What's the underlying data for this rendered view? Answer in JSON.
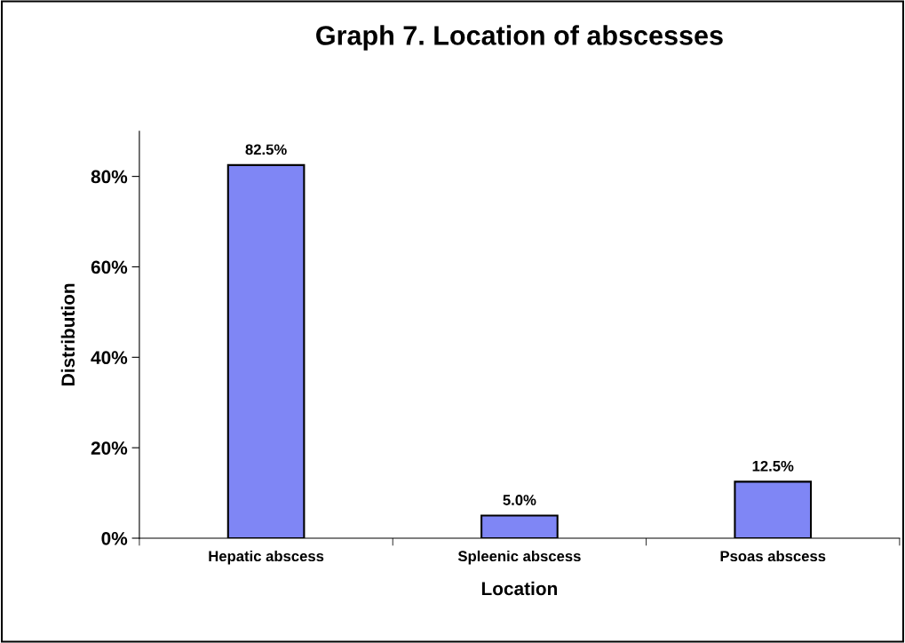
{
  "chart_data": {
    "type": "bar",
    "title": "Graph 7. Location of abscesses",
    "xlabel": "Location",
    "ylabel": "Distribution",
    "categories": [
      "Hepatic abscess",
      "Spleenic abscess",
      "Psoas abscess"
    ],
    "values": [
      82.5,
      5.0,
      12.5
    ],
    "value_labels": [
      "82.5%",
      "5.0%",
      "12.5%"
    ],
    "color": "#7f86f5",
    "ylim": [
      0,
      90
    ],
    "yticks": [
      {
        "value": 0,
        "label": "0%"
      },
      {
        "value": 20,
        "label": "20%"
      },
      {
        "value": 40,
        "label": "40%"
      },
      {
        "value": 60,
        "label": "60%"
      },
      {
        "value": 80,
        "label": "80%"
      }
    ],
    "grid": false
  }
}
